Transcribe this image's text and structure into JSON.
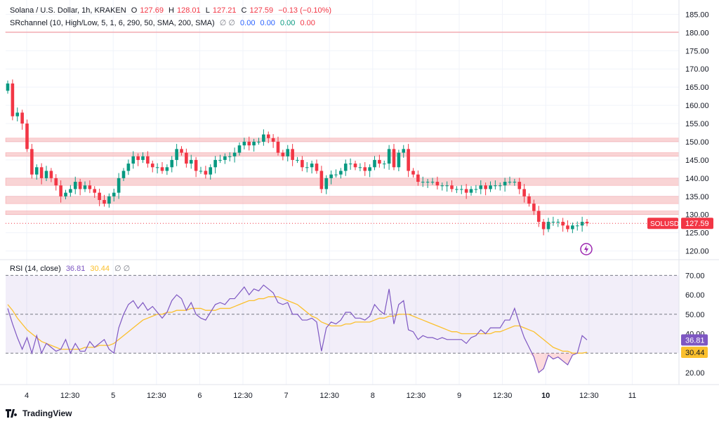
{
  "legend": {
    "symbol": "Solana / U.S. Dollar, 1h, KRAKEN",
    "o_label": "O",
    "o": "127.69",
    "h_label": "H",
    "h": "128.01",
    "l_label": "L",
    "l": "127.21",
    "c_label": "C",
    "c": "127.59",
    "change": "−0.13 (−0.10%)",
    "indicator": "SRchannel (10, High/Low, 5, 1, 6, 290, 50, SMA, 200, SMA)",
    "indicator_flags": "∅ ∅",
    "indicator_vals": [
      "0.00",
      "0.00",
      "0.00",
      "0.00"
    ],
    "indicator_val_colors": [
      "#2962ff",
      "#2962ff",
      "#089981",
      "#f23645"
    ],
    "rsi": "RSI (14, close)",
    "rsi_val": "36.81",
    "rsi_ma": "30.44",
    "rsi_flags": "∅ ∅"
  },
  "brand": "TradingView",
  "colors": {
    "up": "#089981",
    "down": "#f23645",
    "rsi": "#7e57c2",
    "rsi_ma": "#fbc02d",
    "zone": "#f7c5c7"
  },
  "chart_data": [
    {
      "type": "candlestick",
      "title": "Solana / U.S. Dollar, 1h, KRAKEN",
      "y_ticks": [
        120,
        125,
        130,
        135,
        140,
        145,
        150,
        155,
        160,
        165,
        170,
        175,
        180,
        185
      ],
      "ylim": [
        118,
        187
      ],
      "x_ticks": [
        "4",
        "12:30",
        "5",
        "12:30",
        "6",
        "12:30",
        "7",
        "12:30",
        "8",
        "12:30",
        "9",
        "12:30",
        "10",
        "12:30",
        "11"
      ],
      "last_price_label": "SOLUSD",
      "last_price": 127.59,
      "sr_zones": [
        [
          180,
          180.2
        ],
        [
          150,
          151
        ],
        [
          146,
          147
        ],
        [
          138,
          140
        ],
        [
          133,
          135
        ],
        [
          130,
          131
        ]
      ],
      "close_series": [
        166,
        157,
        158,
        155,
        148,
        141,
        143,
        140,
        142,
        140,
        138,
        135,
        136,
        137,
        139,
        137,
        138,
        137,
        136,
        134,
        133,
        135,
        136,
        140,
        142,
        144,
        146,
        145,
        146,
        144,
        143,
        143,
        142,
        143,
        145,
        148,
        147,
        144,
        145,
        142,
        142,
        141,
        143,
        145,
        145,
        146,
        146,
        147,
        149,
        150,
        149,
        150,
        150,
        152,
        151,
        150,
        147,
        146,
        148,
        145,
        145,
        143,
        143,
        144,
        142,
        137,
        140,
        141,
        141,
        142,
        144,
        144,
        143,
        143,
        142,
        143,
        145,
        144,
        144,
        148,
        143,
        147,
        148,
        142,
        141,
        139,
        139,
        139,
        139,
        138,
        138,
        138,
        137,
        137,
        137,
        136,
        137,
        137,
        138,
        137,
        138,
        138,
        138,
        139,
        139,
        139,
        137,
        135,
        133,
        131,
        128,
        126,
        128,
        128,
        128,
        127,
        126,
        127,
        127,
        128,
        127.59
      ]
    },
    {
      "type": "line",
      "title": "RSI (14, close)",
      "y_ticks": [
        20,
        30,
        40,
        50,
        60,
        70
      ],
      "ylim": [
        16,
        73
      ],
      "guide_lines": [
        70,
        50,
        30
      ],
      "rsi_last": 36.81,
      "rsi_ma_last": 30.44,
      "series": [
        {
          "name": "RSI",
          "values": [
            53,
            45,
            38,
            32,
            38,
            30,
            39,
            30,
            35,
            33,
            31,
            32,
            37,
            30,
            35,
            31,
            31,
            36,
            33,
            35,
            37,
            32,
            30,
            43,
            50,
            55,
            57,
            53,
            56,
            52,
            54,
            51,
            48,
            51,
            57,
            60,
            58,
            52,
            56,
            50,
            48,
            47,
            51,
            55,
            56,
            55,
            58,
            58,
            61,
            64,
            60,
            63,
            62,
            65,
            63,
            61,
            56,
            55,
            56,
            50,
            50,
            47,
            47,
            48,
            46,
            31,
            43,
            46,
            45,
            47,
            51,
            51,
            48,
            48,
            47,
            49,
            55,
            52,
            50,
            63,
            45,
            55,
            57,
            42,
            41,
            37,
            39,
            38,
            38,
            37,
            38,
            37,
            37,
            37,
            37,
            35,
            38,
            39,
            42,
            40,
            43,
            43,
            43,
            47,
            47,
            53,
            45,
            38,
            33,
            28,
            20,
            22,
            29,
            27,
            28,
            26,
            24,
            29,
            30,
            39,
            36.81
          ]
        },
        {
          "name": "MA",
          "values": [
            55,
            52,
            48,
            45,
            42,
            40,
            38,
            36,
            35,
            34,
            33,
            32,
            32,
            32,
            32,
            32,
            33,
            33,
            33,
            34,
            34,
            34,
            35,
            37,
            39,
            41,
            43,
            45,
            47,
            48,
            49,
            50,
            50,
            51,
            51,
            52,
            52,
            52,
            53,
            53,
            53,
            52,
            52,
            52,
            53,
            53,
            53,
            54,
            55,
            56,
            57,
            57,
            58,
            58,
            59,
            59,
            59,
            58,
            57,
            56,
            55,
            53,
            51,
            49,
            48,
            46,
            45,
            44,
            44,
            44,
            45,
            45,
            46,
            46,
            46,
            46,
            47,
            48,
            48,
            49,
            49,
            50,
            50,
            50,
            49,
            48,
            47,
            46,
            45,
            44,
            43,
            42,
            41,
            41,
            40,
            40,
            40,
            40,
            40,
            40,
            40,
            41,
            41,
            42,
            43,
            44,
            44,
            43,
            42,
            41,
            39,
            37,
            35,
            33,
            32,
            31,
            31,
            30,
            30,
            30,
            30.44
          ]
        }
      ]
    }
  ]
}
